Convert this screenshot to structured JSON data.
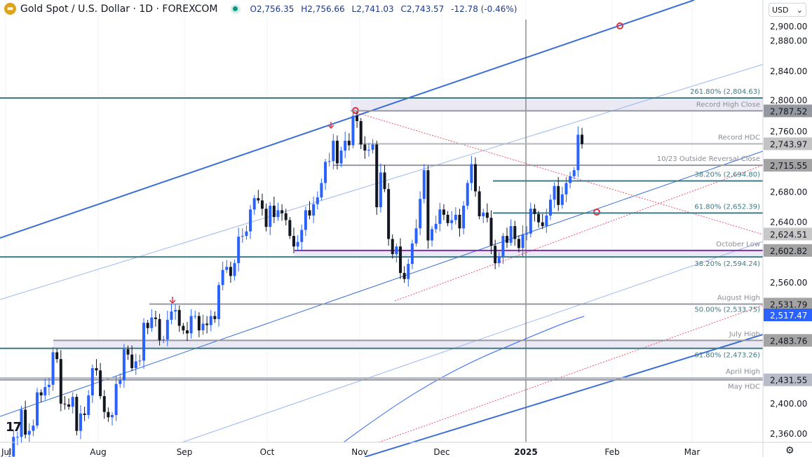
{
  "header": {
    "symbol_title": "Gold Spot / U.S. Dollar · 1D · FOREXCOM",
    "open": "O2,756.35",
    "high": "H2,756.66",
    "low": "L2,741.03",
    "close": "C2,743.57",
    "change": "-12.78 (-0.46%)",
    "currency": "USD",
    "logo_icon": "gold-bars-icon",
    "status_icon": "market-open-dot-icon"
  },
  "footer": {
    "settings_icon": "gear-icon",
    "brand": "TradingView"
  },
  "colors": {
    "up": "#2962ff",
    "down": "#131722",
    "channel": "#3a6fd8",
    "fib": "#3e7a86",
    "purple": "#7b2fa8",
    "red_dotted": "#f0506e",
    "badge_blue": "#2962ff"
  },
  "chart_data": {
    "type": "candlestick",
    "title": "Gold Spot / U.S. Dollar · 1D · FOREXCOM",
    "ylim": [
      2340,
      2920
    ],
    "y_ticks": [
      "2,900.00",
      "2,880.00",
      "2,840.00",
      "2,800.00",
      "2,760.00",
      "2,680.00",
      "2,640.00",
      "2,560.00",
      "2,400.00",
      "2,360.00"
    ],
    "y_tick_values": [
      2900,
      2880,
      2840,
      2800,
      2760,
      2680,
      2640,
      2560,
      2400,
      2360
    ],
    "x_ticks": [
      "Jul",
      "Aug",
      "Sep",
      "Oct",
      "Nov",
      "Dec",
      "2025",
      "Feb",
      "Mar"
    ],
    "start_date": "2024-07-01",
    "end_date": "2025-01-21",
    "closes": [
      2326,
      2330,
      2356,
      2356,
      2392,
      2359,
      2364,
      2371,
      2415,
      2411,
      2422,
      2425,
      2468,
      2459,
      2400,
      2399,
      2396,
      2409,
      2364,
      2387,
      2385,
      2411,
      2447,
      2444,
      2410,
      2389,
      2382,
      2385,
      2426,
      2431,
      2472,
      2465,
      2447,
      2456,
      2457,
      2507,
      2500,
      2514,
      2512,
      2484,
      2485,
      2511,
      2522,
      2524,
      2503,
      2497,
      2493,
      2516,
      2516,
      2497,
      2506,
      2504,
      2516,
      2512,
      2557,
      2577,
      2581,
      2569,
      2586,
      2621,
      2622,
      2628,
      2657,
      2672,
      2669,
      2658,
      2634,
      2662,
      2647,
      2656,
      2652,
      2643,
      2622,
      2608,
      2614,
      2630,
      2656,
      2649,
      2664,
      2673,
      2692,
      2720,
      2721,
      2748,
      2718,
      2735,
      2748,
      2742,
      2781,
      2774,
      2743,
      2735,
      2736,
      2743,
      2660,
      2706,
      2684,
      2618,
      2598,
      2608,
      2573,
      2565,
      2585,
      2612,
      2632,
      2671,
      2709,
      2616,
      2631,
      2638,
      2657,
      2650,
      2639,
      2643,
      2650,
      2632,
      2662,
      2692,
      2717,
      2681,
      2648,
      2653,
      2646,
      2609,
      2586,
      2595,
      2622,
      2613,
      2635,
      2618,
      2606,
      2624,
      2625,
      2658,
      2651,
      2640,
      2635,
      2649,
      2670,
      2688,
      2663,
      2677,
      2692,
      2701,
      2709,
      2756,
      2743.57
    ],
    "levels": [
      {
        "price": 2804.63,
        "label": "261.80% (2,804.63)",
        "style": "fib"
      },
      {
        "price": 2787.52,
        "label": "Record High Close",
        "style": "gray"
      },
      {
        "price": 2743.97,
        "label": "Record HDC",
        "style": "lightgray"
      },
      {
        "price": 2715.55,
        "label": "10/23 Outside Reversal Close",
        "style": "gray"
      },
      {
        "price": 2694.8,
        "label": "38.20% (2,694.80)",
        "style": "fib"
      },
      {
        "price": 2652.39,
        "label": "61.80% (2,652.39)",
        "style": "fib"
      },
      {
        "price": 2602.82,
        "label": "October Low",
        "style": "purple"
      },
      {
        "price": 2594.24,
        "label": "38.20% (2,594.24)",
        "style": "fib"
      },
      {
        "price": 2531.79,
        "label": "August High",
        "style": "gray"
      },
      {
        "price": 2533.75,
        "label": "50.00% (2,533.75)",
        "style": "fib"
      },
      {
        "price": 2483.76,
        "label": "July High",
        "style": "gray"
      },
      {
        "price": 2473.26,
        "label": "61.80% (2,473.26)",
        "style": "fib"
      },
      {
        "price": 2434.0,
        "label": "April High",
        "style": "lightgray"
      },
      {
        "price": 2431.55,
        "label": "May HDC",
        "style": "gray"
      }
    ],
    "price_badges": [
      {
        "price": 2900.0,
        "text": "2,900.00",
        "bg": "#ffffff",
        "fg": "#131722"
      },
      {
        "price": 2787.52,
        "text": "2,787.52",
        "bg": "#9598a1",
        "fg": "#131722"
      },
      {
        "price": 2743.97,
        "text": "2,743.97",
        "bg": "#c3c3c3",
        "fg": "#131722"
      },
      {
        "price": 2715.55,
        "text": "2,715.55",
        "bg": "#a3a3a3",
        "fg": "#131722"
      },
      {
        "price": 2624.51,
        "text": "2,624.51",
        "bg": "#c8c8c8",
        "fg": "#131722"
      },
      {
        "price": 2602.82,
        "text": "2,602.82",
        "bg": "#a3a3a3",
        "fg": "#131722"
      },
      {
        "price": 2531.79,
        "text": "2,531.79",
        "bg": "#a3a3a3",
        "fg": "#131722"
      },
      {
        "price": 2517.47,
        "text": "2,517.47",
        "bg": "#2962ff",
        "fg": "#ffffff"
      },
      {
        "price": 2483.76,
        "text": "2,483.76",
        "bg": "#a3a3a3",
        "fg": "#131722"
      },
      {
        "price": 2431.55,
        "text": "2,431.55",
        "bg": "#b8bcc8",
        "fg": "#131722"
      }
    ]
  }
}
